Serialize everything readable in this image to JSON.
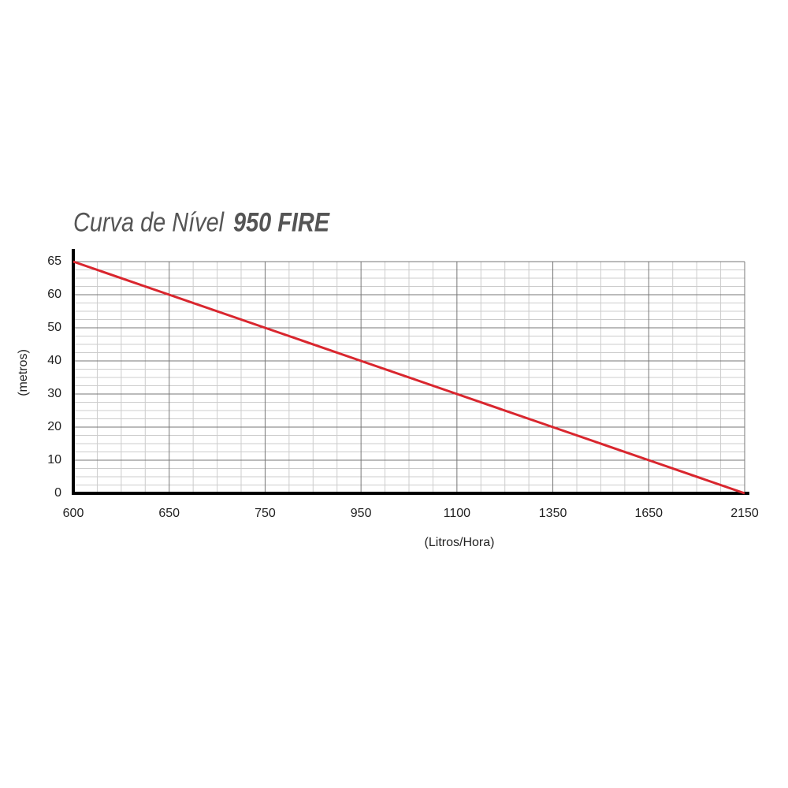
{
  "chart_data": {
    "type": "line",
    "title": "Curva de Nível",
    "subtitle": "950 FIRE",
    "x_label": "(Litros/Hora)",
    "y_label": "(metros)",
    "categories": [
      "600",
      "650",
      "750",
      "950",
      "1100",
      "1350",
      "1650",
      "2150"
    ],
    "series": [
      {
        "name": null,
        "color": "#d9262e",
        "values": [
          65,
          60,
          50,
          40,
          30,
          20,
          10,
          0
        ]
      }
    ],
    "ylim": [
      0,
      65
    ],
    "yticks": [
      0,
      10,
      20,
      30,
      40,
      50,
      60,
      65
    ],
    "grid": true
  }
}
